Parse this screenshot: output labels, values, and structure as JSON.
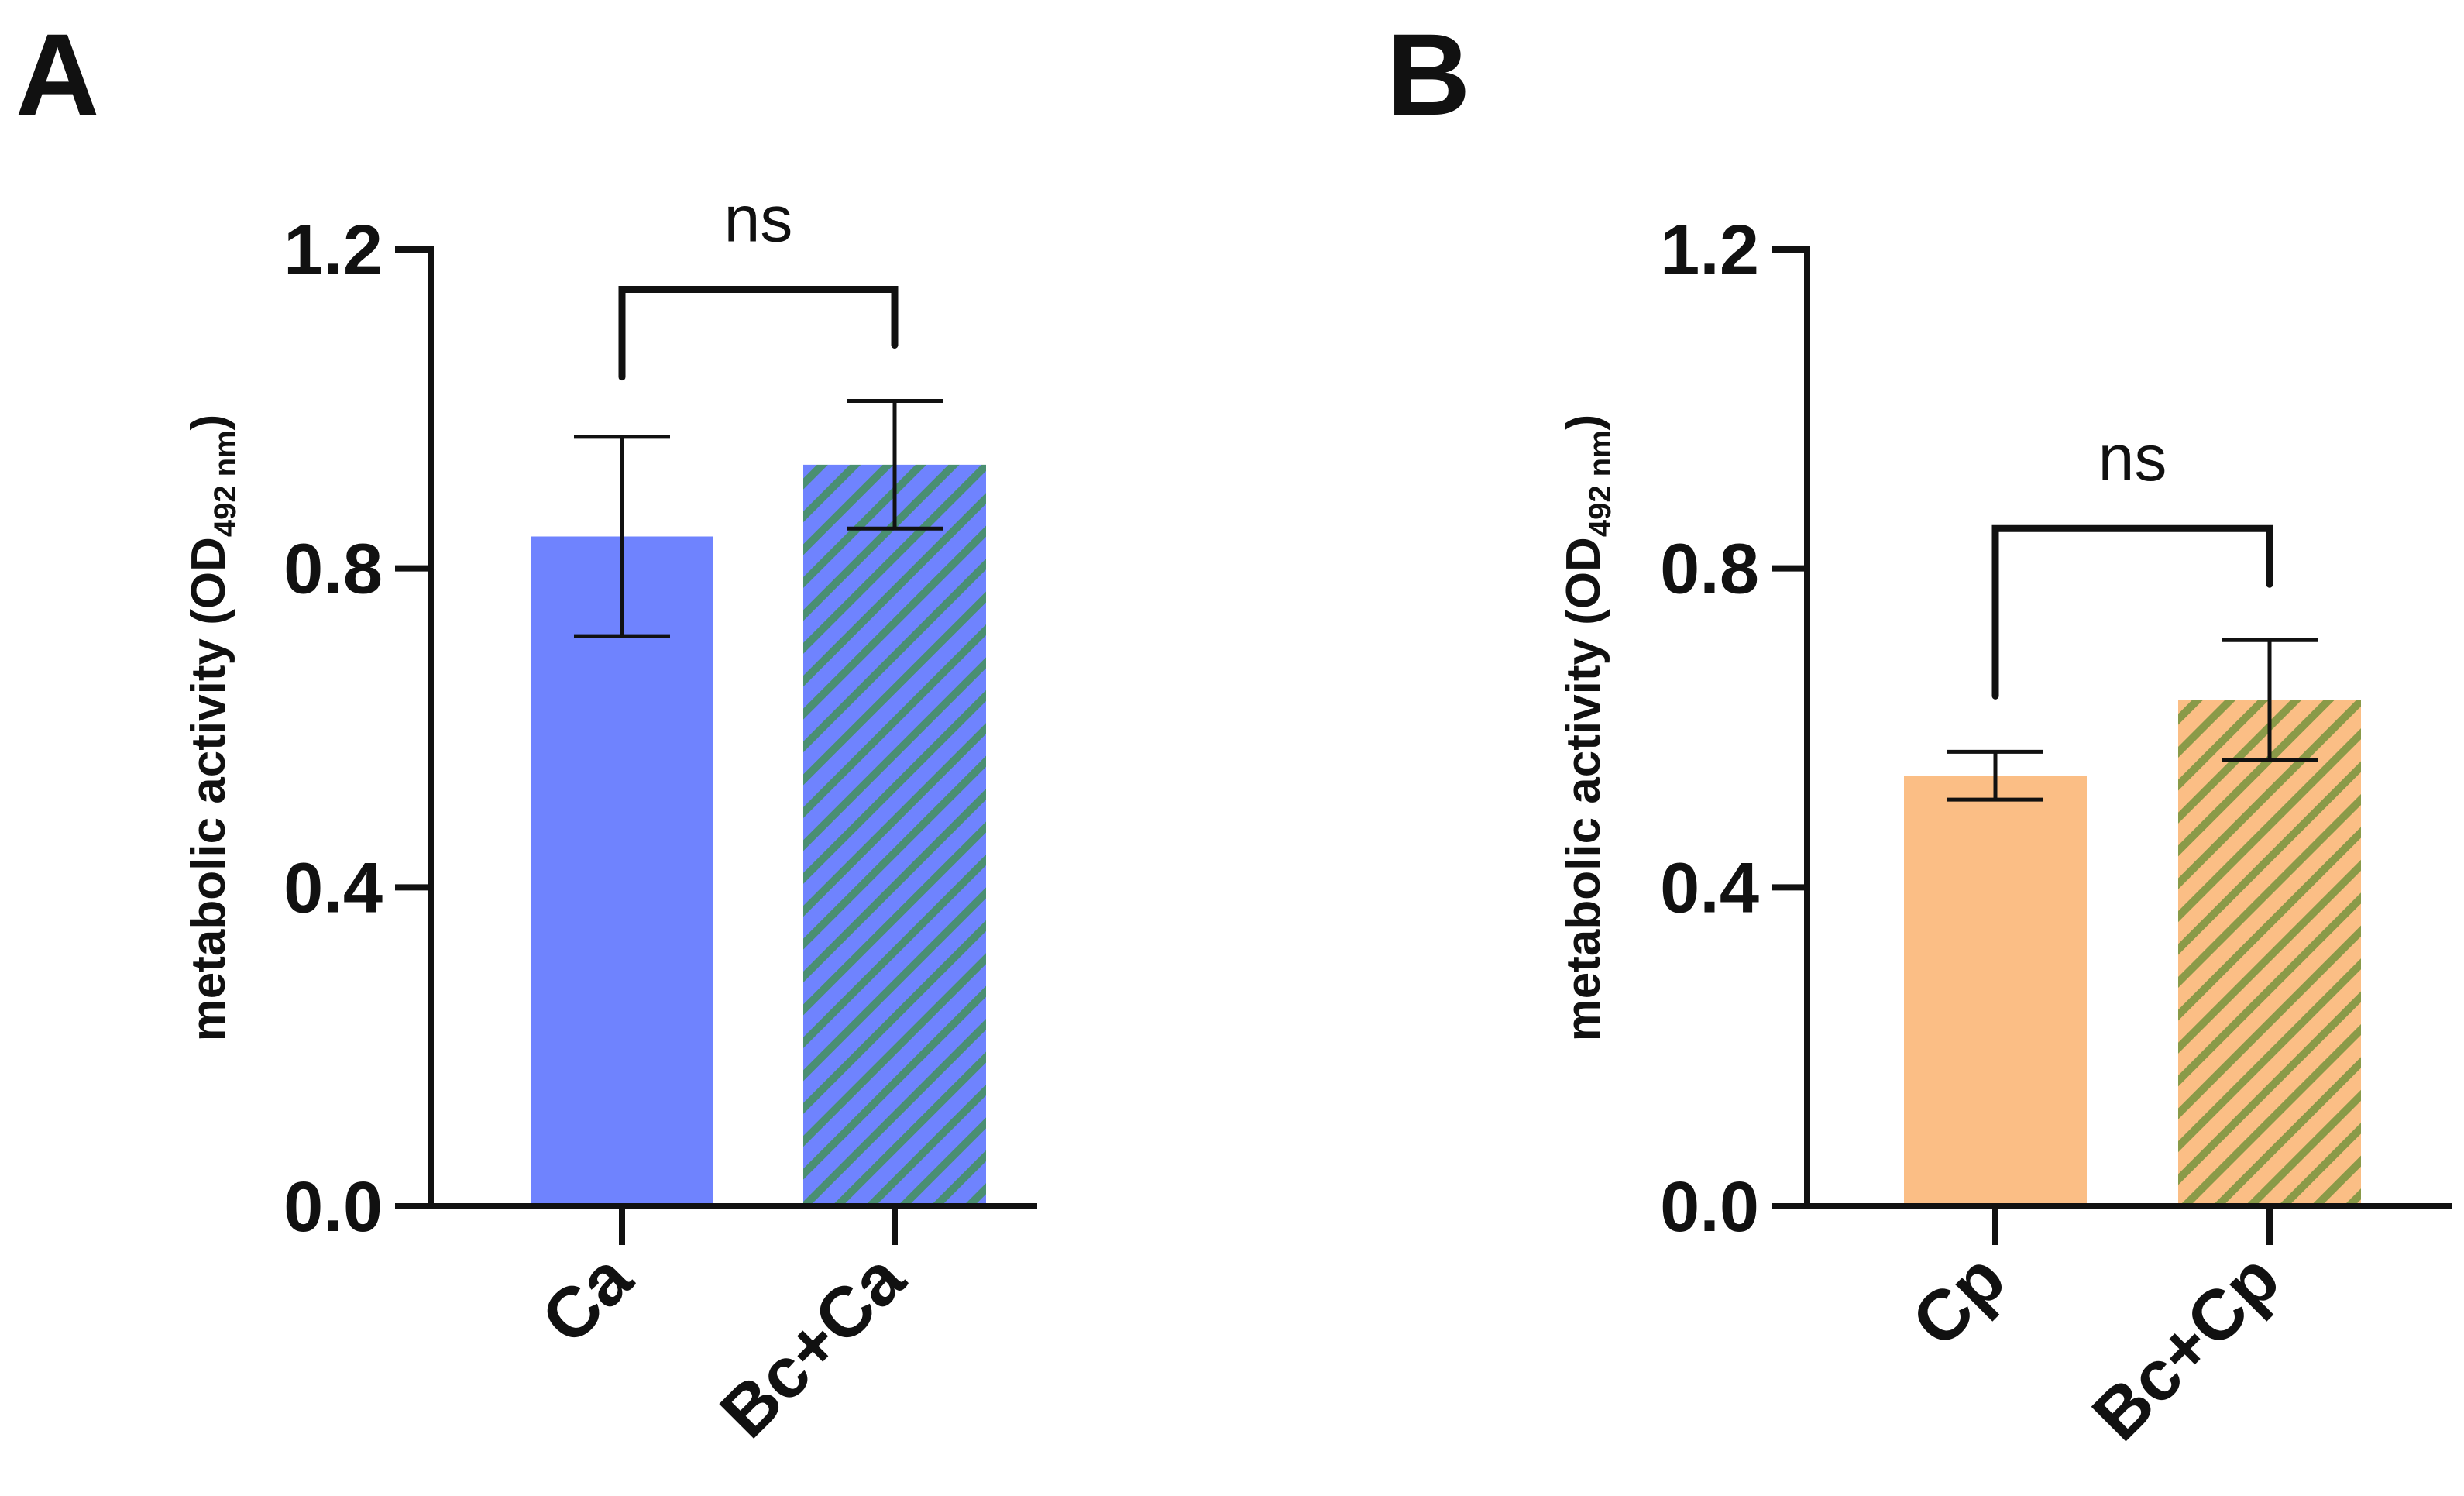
{
  "chart_data": [
    {
      "panel": "A",
      "type": "bar",
      "categories": [
        "Ca",
        "Bc+Ca"
      ],
      "values": [
        0.84,
        0.93
      ],
      "errors": [
        0.125,
        0.08
      ],
      "patterns": [
        "solid",
        "hatched"
      ],
      "colors": [
        "#6F83FE",
        "#6F83FE"
      ],
      "hatch_color": "#4A8F72",
      "ylabel": "metabolic activity (OD",
      "ylabel_sub": "492 nm",
      "ylabel_close": ")",
      "ylim": [
        0,
        1.2
      ],
      "yticks": [
        "0.0",
        "0.4",
        "0.8",
        "1.2"
      ],
      "ytick_values": [
        0,
        0.4,
        0.8,
        1.2
      ],
      "significance": {
        "label": "ns",
        "between": [
          0,
          1
        ],
        "level": 1.15,
        "left_drop": 1.04,
        "right_drop": 1.08
      }
    },
    {
      "panel": "B",
      "type": "bar",
      "categories": [
        "Cp",
        "Bc+Cp"
      ],
      "values": [
        0.54,
        0.635
      ],
      "errors": [
        0.03,
        0.075
      ],
      "patterns": [
        "solid",
        "hatched"
      ],
      "colors": [
        "#FBBE85",
        "#FBBE85"
      ],
      "hatch_color": "#8A9A48",
      "ylabel": "metabolic activity (OD",
      "ylabel_sub": "492 nm",
      "ylabel_close": ")",
      "ylim": [
        0,
        1.2
      ],
      "yticks": [
        "0.0",
        "0.4",
        "0.8",
        "1.2"
      ],
      "ytick_values": [
        0,
        0.4,
        0.8,
        1.2
      ],
      "significance": {
        "label": "ns",
        "between": [
          0,
          1
        ],
        "level": 0.85,
        "left_drop": 0.64,
        "right_drop": 0.78
      }
    }
  ]
}
